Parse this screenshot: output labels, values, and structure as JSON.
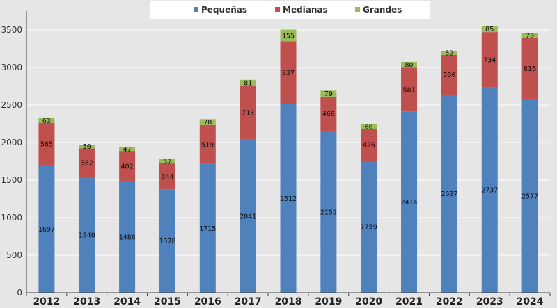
{
  "chart_data": {
    "type": "bar",
    "stacked": true,
    "categories": [
      "2012",
      "2013",
      "2014",
      "2015",
      "2016",
      "2017",
      "2018",
      "2019",
      "2020",
      "2021",
      "2022",
      "2023",
      "2024"
    ],
    "series": [
      {
        "name": "Pequeñas",
        "color": "#4f81bd",
        "values": [
          1697,
          1540,
          1486,
          1378,
          1715,
          2041,
          2512,
          2152,
          1759,
          2414,
          2637,
          2737,
          2577
        ]
      },
      {
        "name": "Medianas",
        "color": "#c0504d",
        "values": [
          565,
          382,
          402,
          344,
          519,
          713,
          837,
          460,
          426,
          581,
          530,
          734,
          816
        ]
      },
      {
        "name": "Grandes",
        "color": "#9bbb59",
        "values": [
          63,
          50,
          47,
          57,
          78,
          81,
          155,
          79,
          60,
          80,
          52,
          85,
          70
        ]
      }
    ],
    "yticks": [
      "0",
      "500",
      "1000",
      "1500",
      "2000",
      "2500",
      "3000",
      "3500"
    ],
    "ylim": [
      0,
      3750
    ],
    "grid": true,
    "legend": "top-center",
    "title": "",
    "xlabel": "",
    "ylabel": ""
  }
}
